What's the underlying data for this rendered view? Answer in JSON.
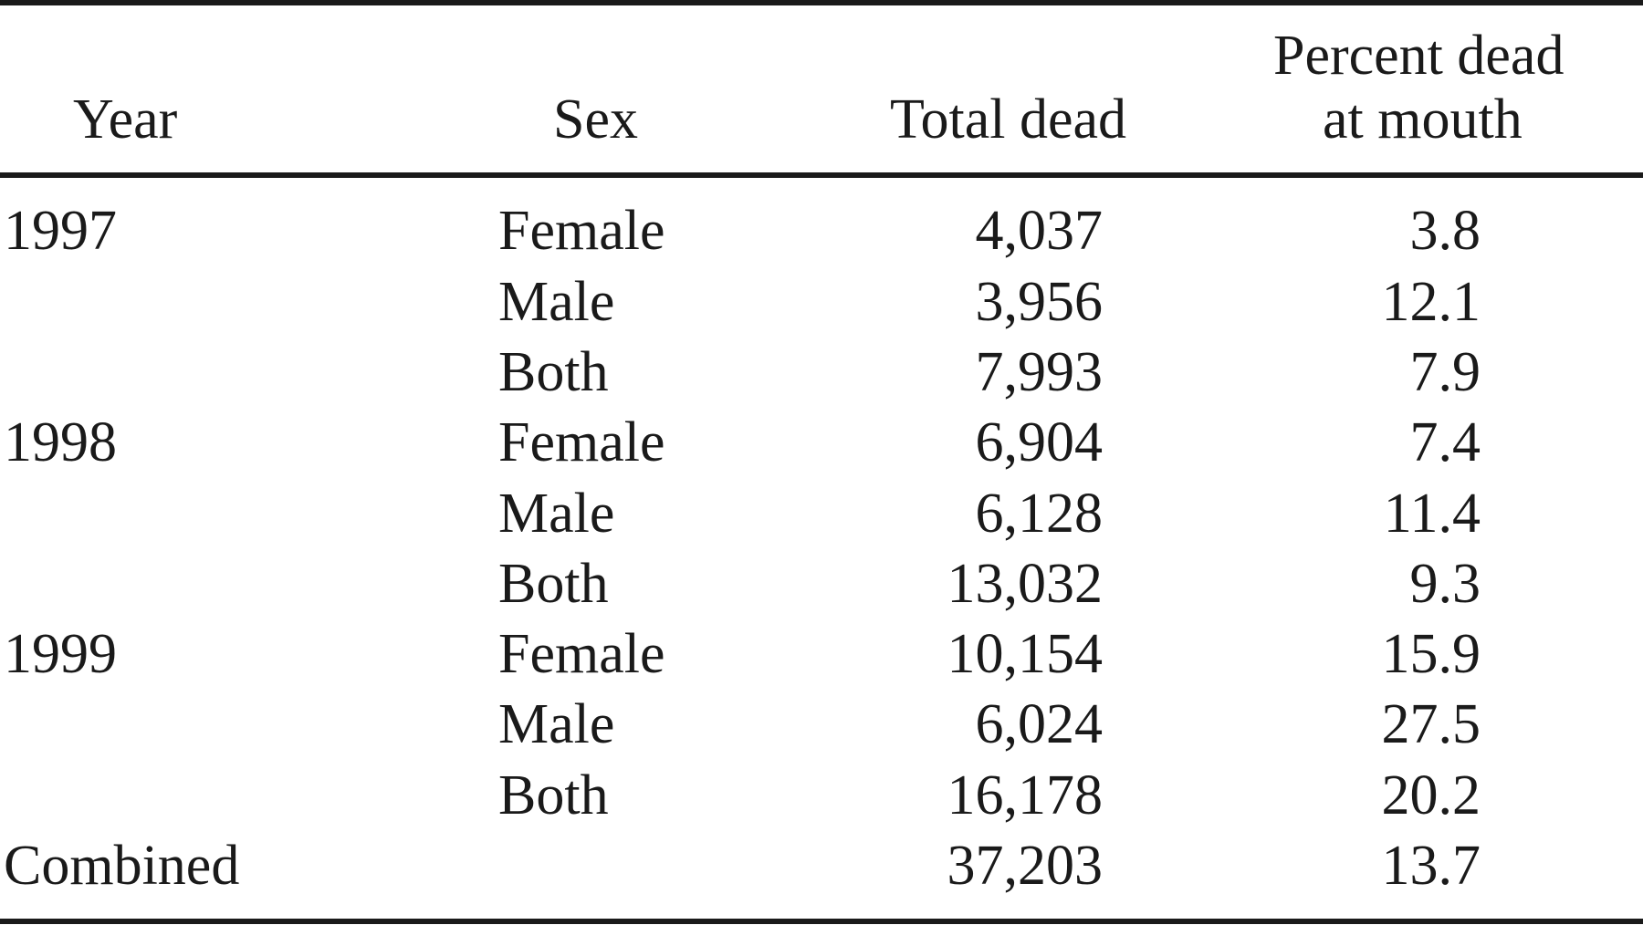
{
  "table": {
    "headers": {
      "year": "Year",
      "sex": "Sex",
      "total_dead": "Total dead",
      "percent_dead_line1": "Percent dead",
      "percent_dead_line2": "at mouth"
    },
    "rows": [
      {
        "year": "1997",
        "sex": "Female",
        "total_dead": "4,037",
        "percent_dead": "3.8"
      },
      {
        "year": "",
        "sex": "Male",
        "total_dead": "3,956",
        "percent_dead": "12.1"
      },
      {
        "year": "",
        "sex": "Both",
        "total_dead": "7,993",
        "percent_dead": "7.9"
      },
      {
        "year": "1998",
        "sex": "Female",
        "total_dead": "6,904",
        "percent_dead": "7.4"
      },
      {
        "year": "",
        "sex": "Male",
        "total_dead": "6,128",
        "percent_dead": "11.4"
      },
      {
        "year": "",
        "sex": "Both",
        "total_dead": "13,032",
        "percent_dead": "9.3"
      },
      {
        "year": "1999",
        "sex": "Female",
        "total_dead": "10,154",
        "percent_dead": "15.9"
      },
      {
        "year": "",
        "sex": "Male",
        "total_dead": "6,024",
        "percent_dead": "27.5"
      },
      {
        "year": "",
        "sex": "Both",
        "total_dead": "16,178",
        "percent_dead": "20.2"
      },
      {
        "year": "Combined",
        "sex": "",
        "total_dead": "37,203",
        "percent_dead": "13.7"
      }
    ]
  }
}
